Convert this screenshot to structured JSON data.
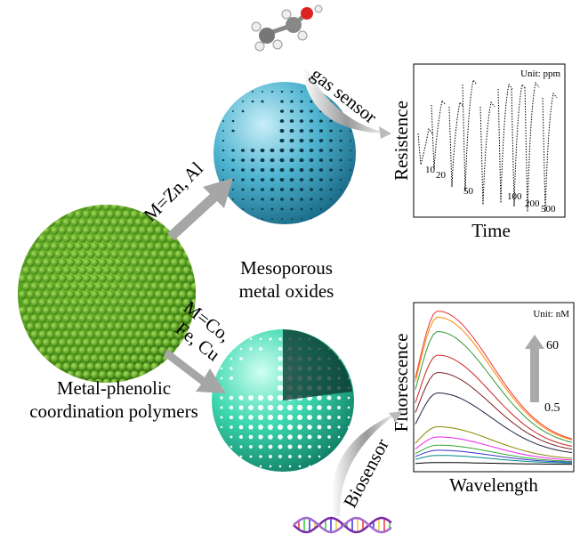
{
  "labels": {
    "route_top": "M=Zn, Al",
    "route_bottom": [
      "M=Co,",
      "Fe, Cu"
    ],
    "product_top": [
      "Mesoporous",
      "metal oxides"
    ],
    "precursor": [
      "Metal-phenolic",
      "coordination polymers"
    ],
    "application_top": "gas sensor",
    "application_bottom": "Biosensor"
  },
  "gas_sensor_plot": {
    "unit": "Unit: ppm",
    "y_label": "Resistence",
    "x_label": "Time",
    "concentrations": [
      "10",
      "20",
      "50",
      "100",
      "200",
      "500"
    ]
  },
  "biosensor_plot": {
    "unit": "Unit: nM",
    "y_label": "Fluorescence",
    "x_label": "Wavelength",
    "range_high": "60",
    "range_low": "0.5"
  }
}
